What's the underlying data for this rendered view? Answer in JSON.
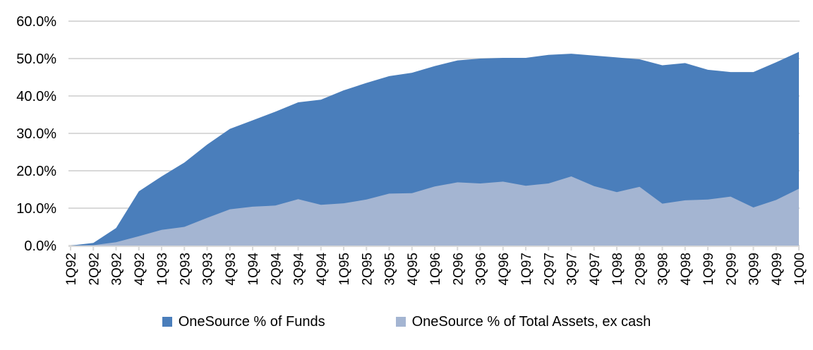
{
  "chart_data": {
    "type": "area",
    "mode": "overlapping",
    "title": "",
    "xlabel": "",
    "ylabel": "",
    "ylim": [
      0,
      60
    ],
    "grid": true,
    "legend_position": "bottom",
    "gridline_color": "#D9D9D9",
    "axis_color": "#D9D9D9",
    "text_color": "#000000",
    "y_tick_labels": [
      "0.0%",
      "10.0%",
      "20.0%",
      "30.0%",
      "40.0%",
      "50.0%",
      "60.0%"
    ],
    "categories": [
      "1Q92",
      "2Q92",
      "3Q92",
      "4Q92",
      "1Q93",
      "2Q93",
      "3Q93",
      "4Q93",
      "1Q94",
      "2Q94",
      "3Q94",
      "4Q94",
      "1Q95",
      "2Q95",
      "3Q95",
      "4Q95",
      "1Q96",
      "2Q96",
      "3Q96",
      "4Q96",
      "1Q97",
      "2Q97",
      "3Q97",
      "4Q97",
      "1Q98",
      "2Q98",
      "3Q98",
      "4Q98",
      "1Q99",
      "2Q99",
      "3Q99",
      "4Q99",
      "1Q00"
    ],
    "series": [
      {
        "name": "OneSource % of Funds",
        "color": "#4A7EBB",
        "values": [
          0.0,
          0.7,
          4.7,
          14.5,
          18.5,
          22.2,
          27.0,
          31.2,
          33.5,
          35.8,
          38.3,
          39.0,
          41.5,
          43.5,
          45.3,
          46.2,
          48.0,
          49.5,
          50.0,
          50.2,
          50.2,
          51.0,
          51.3,
          50.8,
          50.3,
          49.8,
          48.2,
          48.8,
          47.0,
          46.4,
          46.4,
          49.0,
          51.8
        ]
      },
      {
        "name": "OneSource % of Total Assets, ex cash",
        "color": "#A4B5D2",
        "values": [
          0.0,
          0.1,
          0.9,
          2.5,
          4.2,
          5.0,
          7.4,
          9.7,
          10.4,
          10.7,
          12.4,
          10.9,
          11.3,
          12.3,
          13.9,
          14.0,
          15.8,
          16.9,
          16.6,
          17.1,
          16.0,
          16.6,
          18.5,
          15.9,
          14.3,
          15.7,
          11.2,
          12.1,
          12.3,
          13.1,
          10.2,
          12.2,
          15.2
        ]
      }
    ]
  }
}
